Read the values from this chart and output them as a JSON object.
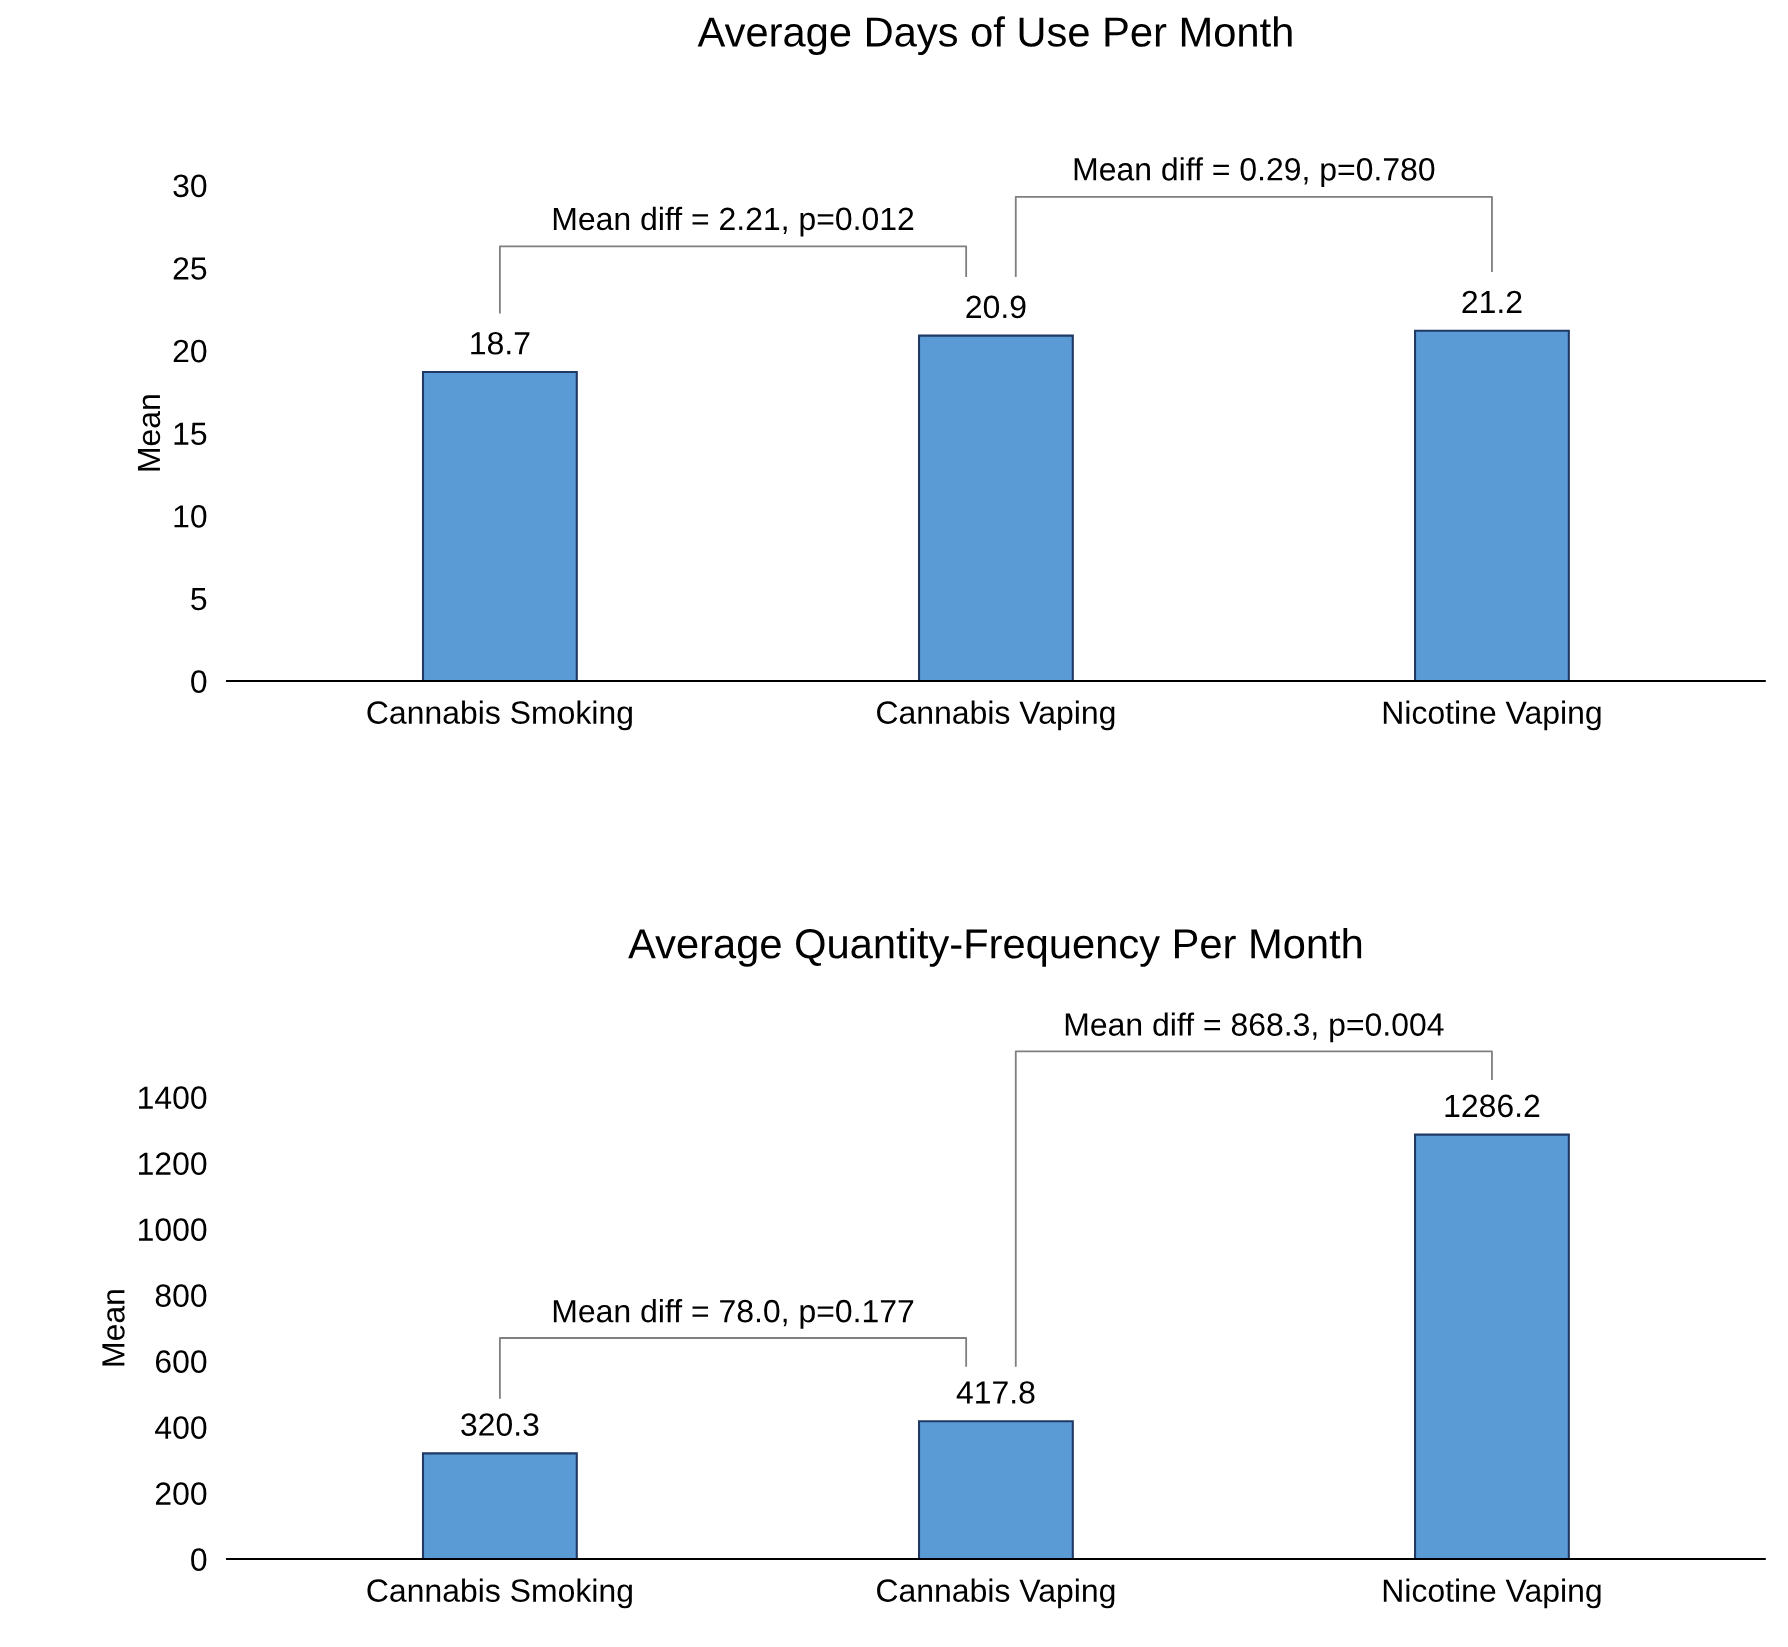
{
  "chart_data": [
    {
      "type": "bar",
      "title": "Average Days of Use Per Month",
      "ylabel": "Mean",
      "categories": [
        "Cannabis Smoking",
        "Cannabis Vaping",
        "Nicotine Vaping"
      ],
      "values": [
        18.7,
        20.9,
        21.2
      ],
      "color": "#5b9bd5",
      "ylim": [
        0,
        30
      ],
      "yticks": [
        0,
        5,
        10,
        15,
        20,
        25,
        30
      ],
      "grid": false,
      "data_labels": true,
      "annotations": [
        "Mean diff = 2.21, p=0.012",
        "Mean diff = 0.29, p=0.780"
      ]
    },
    {
      "type": "bar",
      "title": "Average Quantity-Frequency Per Month",
      "ylabel": "Mean",
      "categories": [
        "Cannabis Smoking",
        "Cannabis Vaping",
        "Nicotine Vaping"
      ],
      "values": [
        320.3,
        417.8,
        1286.2
      ],
      "color": "#5b9bd5",
      "ylim": [
        0,
        1400
      ],
      "yticks": [
        0,
        200,
        400,
        600,
        800,
        1000,
        1200,
        1400
      ],
      "grid": false,
      "data_labels": true,
      "annotations": [
        "Mean diff = 78.0, p=0.177",
        "Mean diff = 868.3, p=0.004"
      ]
    }
  ]
}
